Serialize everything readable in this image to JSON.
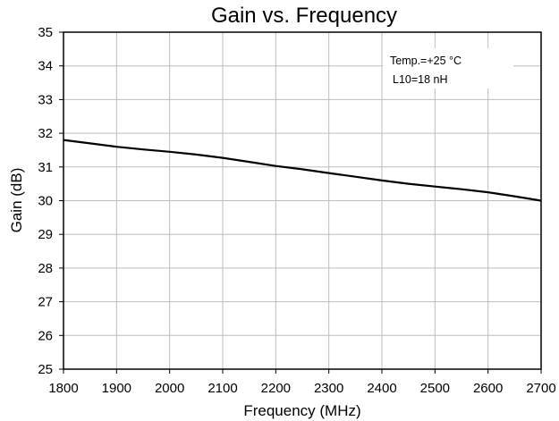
{
  "chart_data": {
    "type": "line",
    "title": "Gain vs. Frequency",
    "xlabel": "Frequency (MHz)",
    "ylabel": "Gain (dB)",
    "xlim": [
      1800,
      2700
    ],
    "ylim": [
      25,
      35
    ],
    "xticks": [
      1800,
      1900,
      2000,
      2100,
      2200,
      2300,
      2400,
      2500,
      2600,
      2700
    ],
    "yticks": [
      25,
      26,
      27,
      28,
      29,
      30,
      31,
      32,
      33,
      34,
      35
    ],
    "grid": true,
    "annotations": [
      "Temp.=+25 °C",
      "L10=18 nH"
    ],
    "series": [
      {
        "x": [
          1800,
          1850,
          1900,
          1950,
          2000,
          2050,
          2100,
          2150,
          2200,
          2250,
          2300,
          2350,
          2400,
          2450,
          2500,
          2550,
          2600,
          2650,
          2700
        ],
        "y": [
          31.8,
          31.7,
          31.6,
          31.52,
          31.45,
          31.37,
          31.27,
          31.15,
          31.03,
          30.93,
          30.82,
          30.71,
          30.6,
          30.5,
          30.42,
          30.34,
          30.25,
          30.13,
          30.0
        ]
      }
    ]
  }
}
